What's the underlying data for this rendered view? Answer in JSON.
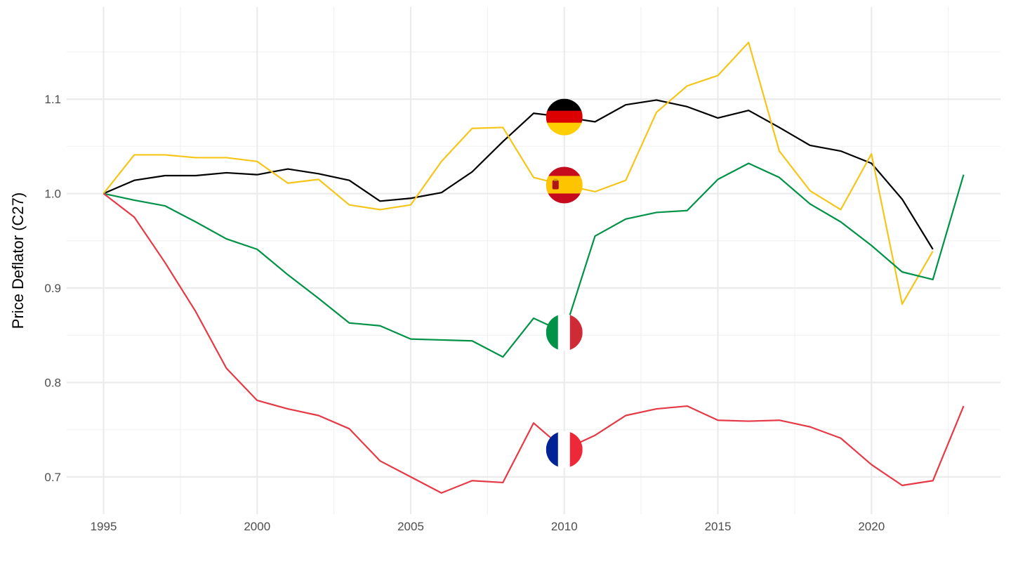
{
  "chart_data": {
    "type": "line",
    "title": "",
    "xlabel": "",
    "ylabel": "Price Deflator (C27)",
    "xlim": [
      1993.8,
      2024.2
    ],
    "ylim": [
      0.6605,
      1.1975
    ],
    "x_ticks": [
      1995,
      2000,
      2005,
      2010,
      2015,
      2020
    ],
    "x_tick_labels": [
      "1995",
      "2000",
      "2005",
      "2010",
      "2015",
      "2020"
    ],
    "y_ticks": [
      0.7,
      0.8,
      0.9,
      1.0,
      1.1
    ],
    "y_tick_labels": [
      "0.7",
      "0.8",
      "0.9",
      "1.0",
      "1.1"
    ],
    "grid": true,
    "legend": "flag icons placed on each series at x = 2010",
    "series": [
      {
        "country": "Germany",
        "color": "#000000",
        "flag_icon": "germany-flag-icon",
        "x": [
          1995,
          1996,
          1997,
          1998,
          1999,
          2000,
          2001,
          2002,
          2003,
          2004,
          2005,
          2006,
          2007,
          2008,
          2009,
          2010,
          2011,
          2012,
          2013,
          2014,
          2015,
          2016,
          2017,
          2018,
          2019,
          2020,
          2021,
          2022
        ],
        "values": [
          1.0,
          1.014,
          1.019,
          1.019,
          1.022,
          1.02,
          1.026,
          1.021,
          1.014,
          0.992,
          0.995,
          1.001,
          1.023,
          1.055,
          1.085,
          1.081,
          1.076,
          1.094,
          1.099,
          1.092,
          1.08,
          1.088,
          1.07,
          1.051,
          1.045,
          1.032,
          0.994,
          0.941
        ]
      },
      {
        "country": "Spain",
        "color": "#F5C518",
        "flag_icon": "spain-flag-icon",
        "x": [
          1995,
          1996,
          1997,
          1998,
          1999,
          2000,
          2001,
          2002,
          2003,
          2004,
          2005,
          2006,
          2007,
          2008,
          2009,
          2010,
          2011,
          2012,
          2013,
          2014,
          2015,
          2016,
          2017,
          2018,
          2019,
          2020,
          2021,
          2022
        ],
        "values": [
          1.0,
          1.041,
          1.041,
          1.038,
          1.038,
          1.034,
          1.011,
          1.015,
          0.988,
          0.983,
          0.988,
          1.034,
          1.069,
          1.07,
          1.017,
          1.009,
          1.002,
          1.014,
          1.086,
          1.114,
          1.125,
          1.16,
          1.045,
          1.003,
          0.983,
          1.042,
          0.883,
          0.939
        ]
      },
      {
        "country": "Italy",
        "color": "#009246",
        "flag_icon": "italy-flag-icon",
        "x": [
          1995,
          1996,
          1997,
          1998,
          1999,
          2000,
          2001,
          2002,
          2003,
          2004,
          2005,
          2006,
          2007,
          2008,
          2009,
          2010,
          2011,
          2012,
          2013,
          2014,
          2015,
          2016,
          2017,
          2018,
          2019,
          2020,
          2021,
          2022,
          2023
        ],
        "values": [
          1.0,
          0.993,
          0.987,
          0.97,
          0.952,
          0.941,
          0.914,
          0.889,
          0.863,
          0.86,
          0.846,
          0.845,
          0.844,
          0.827,
          0.868,
          0.853,
          0.955,
          0.973,
          0.98,
          0.982,
          1.015,
          1.032,
          1.017,
          0.989,
          0.97,
          0.945,
          0.917,
          0.909,
          1.02
        ]
      },
      {
        "country": "France",
        "color": "#E63946",
        "flag_icon": "france-flag-icon",
        "x": [
          1995,
          1996,
          1997,
          1998,
          1999,
          2000,
          2001,
          2002,
          2003,
          2004,
          2005,
          2006,
          2007,
          2008,
          2009,
          2010,
          2011,
          2012,
          2013,
          2014,
          2015,
          2016,
          2017,
          2018,
          2019,
          2020,
          2021,
          2022,
          2023
        ],
        "values": [
          1.0,
          0.975,
          0.927,
          0.875,
          0.815,
          0.781,
          0.772,
          0.765,
          0.751,
          0.717,
          0.7,
          0.683,
          0.696,
          0.694,
          0.757,
          0.729,
          0.744,
          0.765,
          0.772,
          0.775,
          0.76,
          0.759,
          0.76,
          0.753,
          0.741,
          0.713,
          0.691,
          0.696,
          0.775
        ]
      }
    ]
  }
}
